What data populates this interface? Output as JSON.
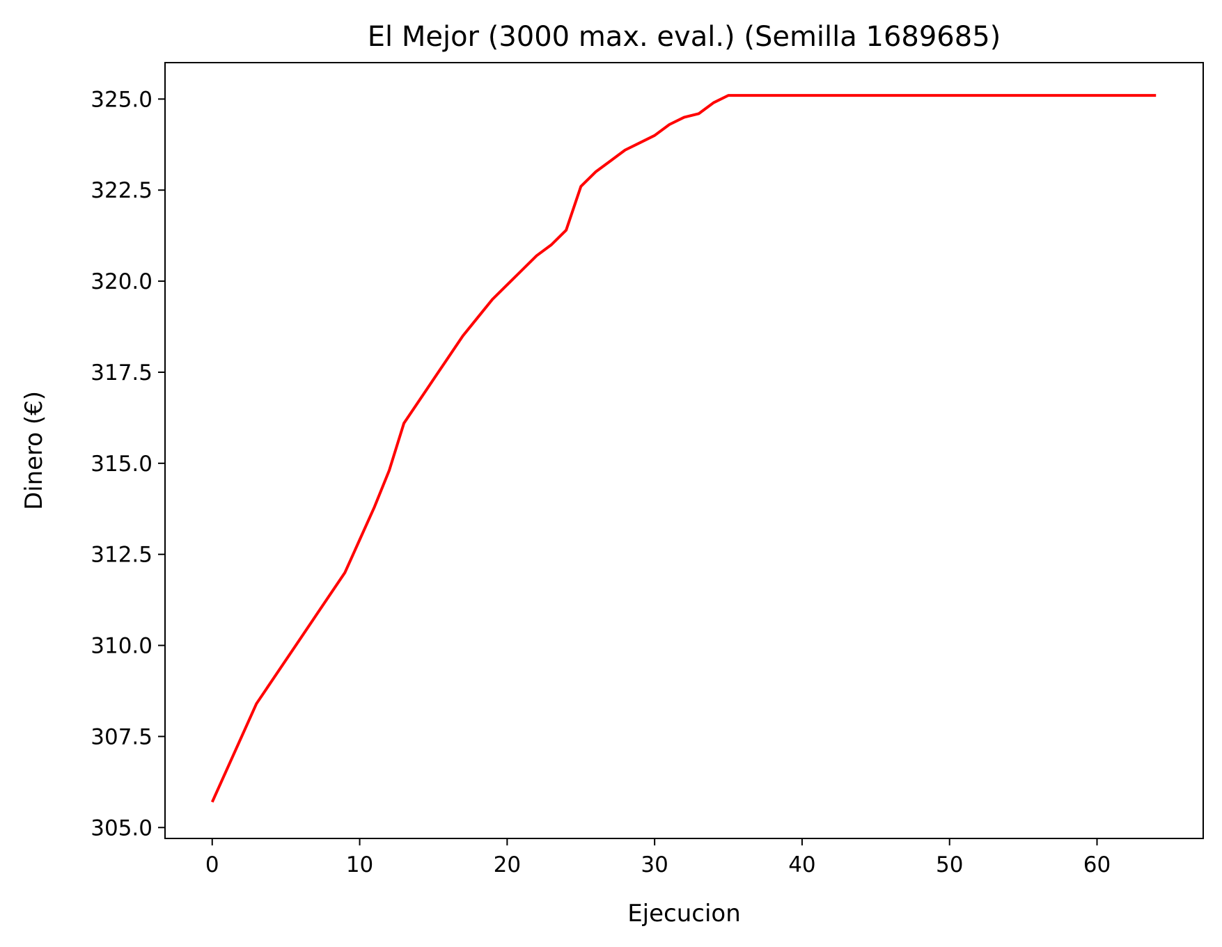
{
  "chart_data": {
    "type": "line",
    "title": "El Mejor (3000 max. eval.) (Semilla 1689685)",
    "xlabel": "Ejecucion",
    "ylabel": "Dinero (€)",
    "xlim": [
      -3.2,
      67.2
    ],
    "ylim": [
      304.7,
      326.0
    ],
    "xticks": [
      0,
      10,
      20,
      30,
      40,
      50,
      60
    ],
    "xtick_labels": [
      "0",
      "10",
      "20",
      "30",
      "40",
      "50",
      "60"
    ],
    "yticks": [
      305.0,
      307.5,
      310.0,
      312.5,
      315.0,
      317.5,
      320.0,
      322.5,
      325.0
    ],
    "ytick_labels": [
      "305.0",
      "307.5",
      "310.0",
      "312.5",
      "315.0",
      "317.5",
      "320.0",
      "322.5",
      "325.0"
    ],
    "grid": false,
    "series": [
      {
        "color": "#ff0000",
        "x": [
          0,
          1,
          2,
          3,
          4,
          5,
          6,
          7,
          8,
          9,
          10,
          11,
          12,
          13,
          14,
          15,
          16,
          17,
          18,
          19,
          20,
          21,
          22,
          23,
          24,
          25,
          26,
          27,
          28,
          29,
          30,
          31,
          32,
          33,
          34,
          35,
          36,
          37,
          38,
          39,
          40,
          41,
          42,
          43,
          44,
          45,
          46,
          47,
          48,
          49,
          50,
          51,
          52,
          53,
          54,
          55,
          56,
          57,
          58,
          59,
          60,
          61,
          62,
          63,
          64
        ],
        "y": [
          305.7,
          306.6,
          307.5,
          308.4,
          309.0,
          309.6,
          310.2,
          310.8,
          311.4,
          312.0,
          312.9,
          313.8,
          314.8,
          316.1,
          316.7,
          317.3,
          317.9,
          318.5,
          319.0,
          319.5,
          319.9,
          320.3,
          320.7,
          321.0,
          321.4,
          322.6,
          323.0,
          323.3,
          323.6,
          323.8,
          324.0,
          324.3,
          324.5,
          324.6,
          324.9,
          325.1,
          325.1,
          325.1,
          325.1,
          325.1,
          325.1,
          325.1,
          325.1,
          325.1,
          325.1,
          325.1,
          325.1,
          325.1,
          325.1,
          325.1,
          325.1,
          325.1,
          325.1,
          325.1,
          325.1,
          325.1,
          325.1,
          325.1,
          325.1,
          325.1,
          325.1,
          325.1,
          325.1,
          325.1,
          325.1
        ]
      }
    ]
  }
}
